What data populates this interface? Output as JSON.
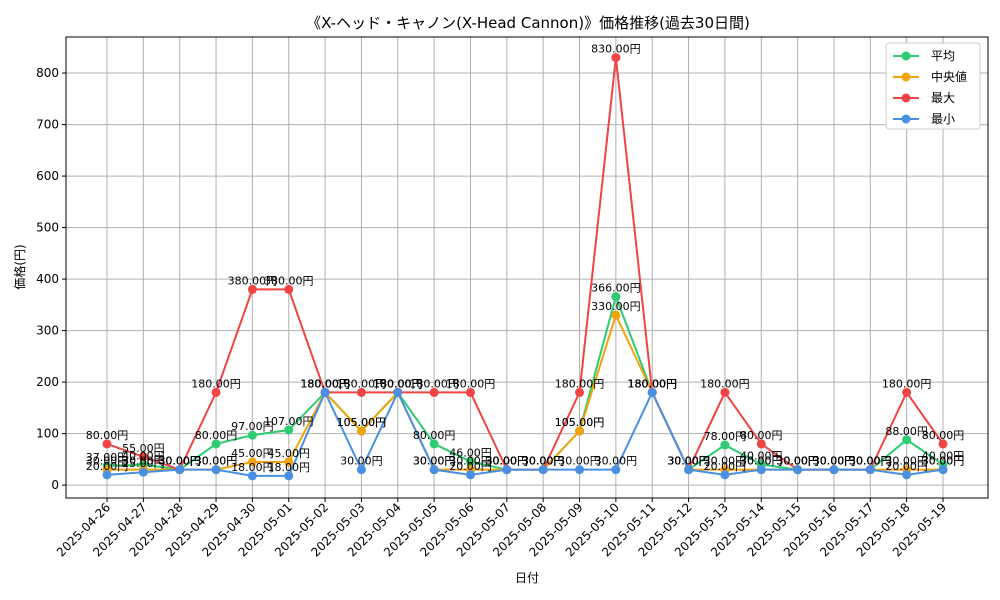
{
  "chart_data": {
    "type": "line",
    "title": "《X-ヘッド・キャノン(X-Head Cannon)》価格推移(過去30日間)",
    "xlabel": "日付",
    "ylabel": "価格(円)",
    "ylim": [
      -25,
      870
    ],
    "yticks": [
      0,
      100,
      200,
      300,
      400,
      500,
      600,
      700,
      800
    ],
    "grid": true,
    "legend_position": "top-right",
    "unit_suffix": "円",
    "categories": [
      "2025-04-26",
      "2025-04-27",
      "2025-04-28",
      "2025-04-29",
      "2025-04-30",
      "2025-05-01",
      "2025-05-02",
      "2025-05-03",
      "2025-05-04",
      "2025-05-05",
      "2025-05-06",
      "2025-05-07",
      "2025-05-08",
      "2025-05-09",
      "2025-05-10",
      "2025-05-11",
      "2025-05-12",
      "2025-05-13",
      "2025-05-14",
      "2025-05-15",
      "2025-05-16",
      "2025-05-17",
      "2025-05-18",
      "2025-05-19"
    ],
    "series": [
      {
        "name": "平均",
        "color": "#2ecc71",
        "values": [
          37,
          40,
          30,
          80,
          97,
          107,
          180,
          105,
          180,
          80,
          46,
          30,
          30,
          105,
          366,
          180,
          30,
          78,
          40,
          30,
          30,
          30,
          88,
          40
        ]
      },
      {
        "name": "中央値",
        "color": "#f0a30a",
        "values": [
          30,
          30,
          30,
          30,
          45,
          45,
          180,
          105,
          180,
          30,
          30,
          30,
          30,
          105,
          330,
          180,
          30,
          30,
          30,
          30,
          30,
          30,
          30,
          30
        ]
      },
      {
        "name": "最大",
        "color": "#ef4444",
        "values": [
          80,
          55,
          30,
          180,
          380,
          380,
          180,
          180,
          180,
          180,
          180,
          30,
          30,
          180,
          830,
          180,
          30,
          180,
          80,
          30,
          30,
          30,
          180,
          80
        ]
      },
      {
        "name": "最小",
        "color": "#4a90e2",
        "values": [
          20,
          25,
          30,
          30,
          18,
          18,
          180,
          30,
          180,
          30,
          20,
          30,
          30,
          30,
          30,
          180,
          30,
          20,
          30,
          30,
          30,
          30,
          20,
          30
        ]
      }
    ]
  }
}
